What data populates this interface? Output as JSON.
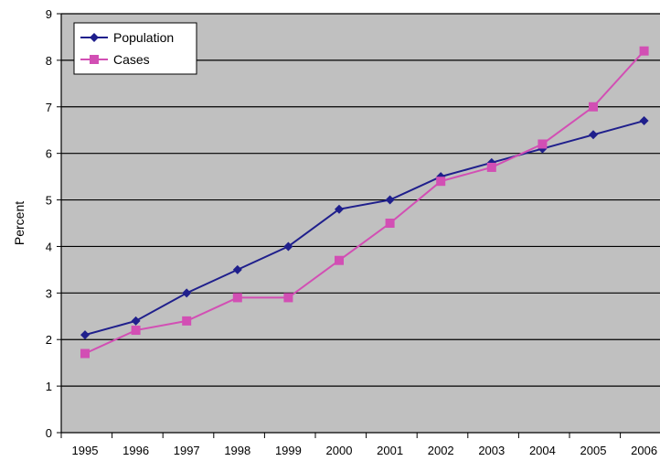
{
  "chart_data": {
    "type": "line",
    "title": "",
    "xlabel": "",
    "ylabel": "Percent",
    "ylim": [
      0,
      9
    ],
    "yticks": [
      "0",
      "1",
      "2",
      "3",
      "4",
      "5",
      "6",
      "7",
      "8",
      "9"
    ],
    "categories": [
      "1995",
      "1996",
      "1997",
      "1998",
      "1999",
      "2000",
      "2001",
      "2002",
      "2003",
      "2004",
      "2005",
      "2006"
    ],
    "grid": true,
    "legend_position": "top-left",
    "series": [
      {
        "name": "Population",
        "marker": "diamond",
        "color": "#1f1f8c",
        "values": [
          2.1,
          2.4,
          3.0,
          3.5,
          4.0,
          4.8,
          5.0,
          5.5,
          5.8,
          6.1,
          6.4,
          6.7
        ]
      },
      {
        "name": "Cases",
        "marker": "square",
        "color": "#d24fb4",
        "values": [
          1.7,
          2.2,
          2.4,
          2.9,
          2.9,
          3.7,
          4.5,
          5.4,
          5.7,
          6.2,
          7.0,
          8.2
        ]
      }
    ],
    "plot_background": "#c0c0c0",
    "gridline_color": "#000000"
  }
}
